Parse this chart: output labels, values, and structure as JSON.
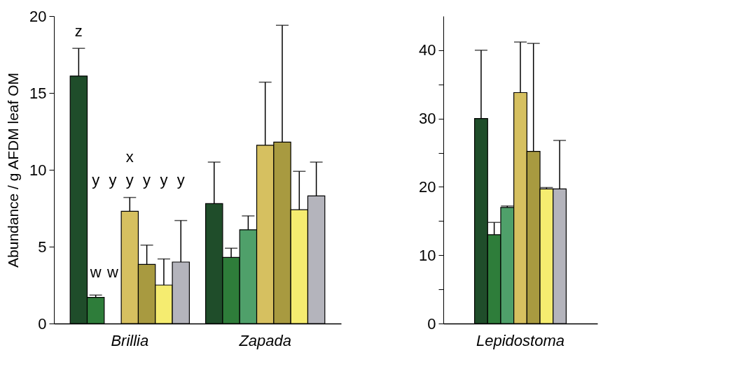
{
  "chart_data": [
    {
      "type": "bar",
      "ylabel": "Abundance / g AFDM leaf OM",
      "categories": [
        "Brillia",
        "Zapada"
      ],
      "ylim": [
        0,
        20
      ],
      "yticks": [
        0,
        5,
        10,
        15,
        20
      ],
      "grid": false,
      "legend": false,
      "series": [
        {
          "color": "#1f4d2a",
          "values": [
            16.1,
            7.8
          ],
          "errors": [
            [
              16.1,
              17.9
            ],
            [
              7.8,
              10.5
            ]
          ]
        },
        {
          "color": "#2e7d3a",
          "values": [
            1.7,
            4.3
          ],
          "errors": [
            [
              1.7,
              1.85
            ],
            [
              4.3,
              4.9
            ]
          ]
        },
        {
          "color": "#4fa06a",
          "values": [
            null,
            6.1
          ],
          "errors": [
            null,
            [
              6.1,
              7.0
            ]
          ]
        },
        {
          "color": "#d6c060",
          "values": [
            7.3,
            11.6
          ],
          "errors": [
            [
              7.3,
              8.2
            ],
            [
              11.6,
              15.7
            ]
          ]
        },
        {
          "color": "#a89a40",
          "values": [
            3.85,
            11.8
          ],
          "errors": [
            [
              3.85,
              5.1
            ],
            [
              11.8,
              19.4
            ]
          ]
        },
        {
          "color": "#f5ec70",
          "values": [
            2.5,
            7.4
          ],
          "errors": [
            [
              2.5,
              4.2
            ],
            [
              7.4,
              9.9
            ]
          ]
        },
        {
          "color": "#b4b4bc",
          "values": [
            4.0,
            8.3
          ],
          "errors": [
            [
              4.0,
              6.7
            ],
            [
              8.3,
              10.5
            ]
          ]
        }
      ],
      "annotations": [
        "z",
        "y",
        "y",
        "x",
        "y",
        "y",
        "y",
        "y",
        "w",
        "w"
      ]
    },
    {
      "type": "bar",
      "categories": [
        "Lepidostoma"
      ],
      "ylim": [
        0,
        45
      ],
      "yticks": [
        0,
        {
          "value": 5,
          "label": null
        },
        10,
        {
          "value": 15,
          "label": null
        },
        20,
        {
          "value": 25,
          "label": null
        },
        30,
        {
          "value": 35,
          "label": null
        },
        40
      ],
      "grid": false,
      "legend": false,
      "series": [
        {
          "color": "#1f4d2a",
          "values": [
            30
          ],
          "errors": [
            [
              30,
              40
            ]
          ]
        },
        {
          "color": "#2e7d3a",
          "values": [
            13
          ],
          "errors": [
            [
              13,
              14.8
            ]
          ]
        },
        {
          "color": "#4fa06a",
          "values": [
            17
          ],
          "errors": [
            [
              17,
              17.2
            ]
          ]
        },
        {
          "color": "#d6c060",
          "values": [
            33.8
          ],
          "errors": [
            [
              33.8,
              41.2
            ]
          ]
        },
        {
          "color": "#a89a40",
          "values": [
            25.2
          ],
          "errors": [
            [
              25.2,
              41
            ]
          ]
        },
        {
          "color": "#f5ec70",
          "values": [
            19.7
          ],
          "errors": [
            [
              19.7,
              19.9
            ]
          ]
        },
        {
          "color": "#b4b4bc",
          "values": [
            19.7
          ],
          "errors": [
            [
              19.7,
              26.8
            ]
          ]
        }
      ]
    }
  ]
}
